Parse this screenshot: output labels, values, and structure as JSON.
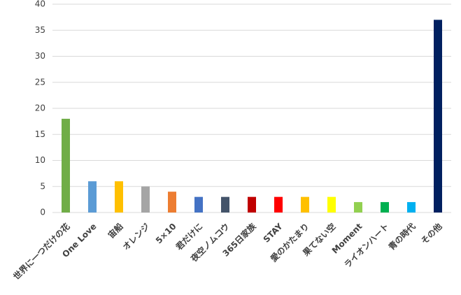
{
  "chart_data": {
    "type": "bar",
    "categories": [
      "世界に一つだけの花",
      "One Love",
      "宙船",
      "オレンジ",
      "5×10",
      "君だけに",
      "夜空ノムコウ",
      "365日家族",
      "STAY",
      "愛のかたまり",
      "果てない空",
      "Moment",
      "ライオンハート",
      "青の時代",
      "その他"
    ],
    "values": [
      18,
      6,
      6,
      5,
      4,
      3,
      3,
      3,
      3,
      3,
      3,
      2,
      2,
      2,
      37
    ],
    "colors": [
      "#70ad47",
      "#5b9bd5",
      "#ffc000",
      "#a5a5a5",
      "#ed7d31",
      "#4472c4",
      "#44546a",
      "#c00000",
      "#ff0000",
      "#ffc000",
      "#ffff00",
      "#92d050",
      "#00b050",
      "#00b0f0",
      "#002060"
    ],
    "ylim": [
      0,
      40
    ],
    "yticks": [
      0,
      5,
      10,
      15,
      20,
      25,
      30,
      35,
      40
    ],
    "grid": true
  }
}
